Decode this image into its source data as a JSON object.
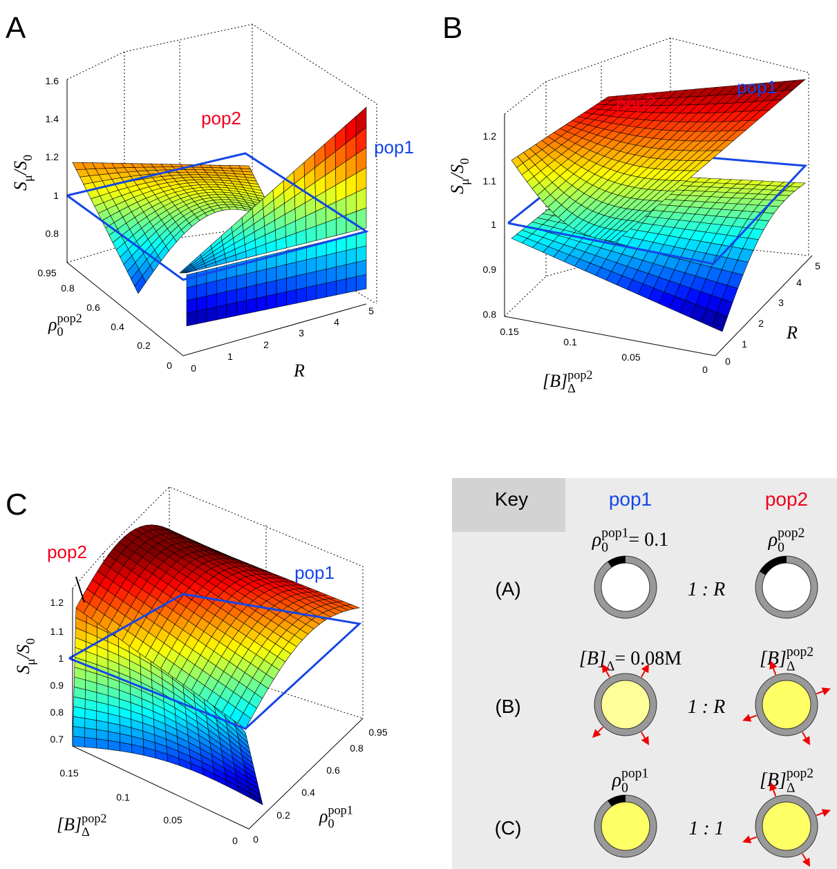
{
  "panels": [
    {
      "letter": "A",
      "z_label": {
        "base": "S",
        "sub": "μ",
        "base2": "/S",
        "sub2": "0"
      },
      "z_ticks": [
        "0.8",
        "1",
        "1.2",
        "1.4",
        "1.6"
      ],
      "x_label": {
        "base": "R"
      },
      "x_ticks": [
        "0",
        "1",
        "2",
        "3",
        "4",
        "5"
      ],
      "y_label": {
        "base": "ρ",
        "sub": "0",
        "sup": "pop2"
      },
      "y_ticks": [
        "0",
        "0.2",
        "0.4",
        "0.6",
        "0.8",
        "0.95"
      ],
      "annotations": [
        "pop2",
        "pop1"
      ]
    },
    {
      "letter": "B",
      "z_label": {
        "base": "S",
        "sub": "μ",
        "base2": "/S",
        "sub2": "0"
      },
      "z_ticks": [
        "0.8",
        "0.9",
        "1",
        "1.1",
        "1.2"
      ],
      "x_label": {
        "base": "R"
      },
      "x_ticks": [
        "0",
        "1",
        "2",
        "3",
        "4",
        "5"
      ],
      "y_label": {
        "base": "[B]",
        "sub": "Δ",
        "sup": "pop2"
      },
      "y_ticks": [
        "0",
        "0.05",
        "0.1",
        "0.15"
      ],
      "annotations": [
        "pop2",
        "pop1"
      ]
    },
    {
      "letter": "C",
      "z_label": {
        "base": "S",
        "sub": "μ",
        "base2": "/S",
        "sub2": "0"
      },
      "z_ticks": [
        "0.7",
        "0.8",
        "0.9",
        "1",
        "1.1",
        "1.2"
      ],
      "x_label": {
        "base": "ρ",
        "sub": "0",
        "sup": "pop1"
      },
      "x_ticks": [
        "0",
        "0.2",
        "0.4",
        "0.6",
        "0.8",
        "0.95"
      ],
      "y_label": {
        "base": "[B]",
        "sub": "Δ",
        "sup": "pop2"
      },
      "y_ticks": [
        "0",
        "0.05",
        "0.1",
        "0.15"
      ],
      "annotations": [
        "pop2",
        "pop1"
      ]
    }
  ],
  "key": {
    "title": "Key",
    "columns": [
      "pop1",
      "pop2"
    ],
    "rows": [
      {
        "label": "(A)",
        "pop1": {
          "base": "ρ",
          "sub": "0",
          "sup": "pop1",
          "rest": " = 0.1"
        },
        "ratio": "1 : R",
        "pop2": {
          "base": "ρ",
          "sub": "0",
          "sup": "pop2"
        }
      },
      {
        "label": "(B)",
        "pop1": {
          "base": "[B]",
          "sub": "Δ",
          "rest": " = 0.08M"
        },
        "ratio": "1 : R",
        "pop2": {
          "base": "[B]",
          "sub": "Δ",
          "sup": "pop2"
        }
      },
      {
        "label": "(C)",
        "pop1": {
          "base": "ρ",
          "sub": "0",
          "sup": "pop1"
        },
        "ratio": "1 : 1",
        "pop2": {
          "base": "[B]",
          "sub": "Δ",
          "sup": "pop2"
        }
      }
    ]
  }
}
